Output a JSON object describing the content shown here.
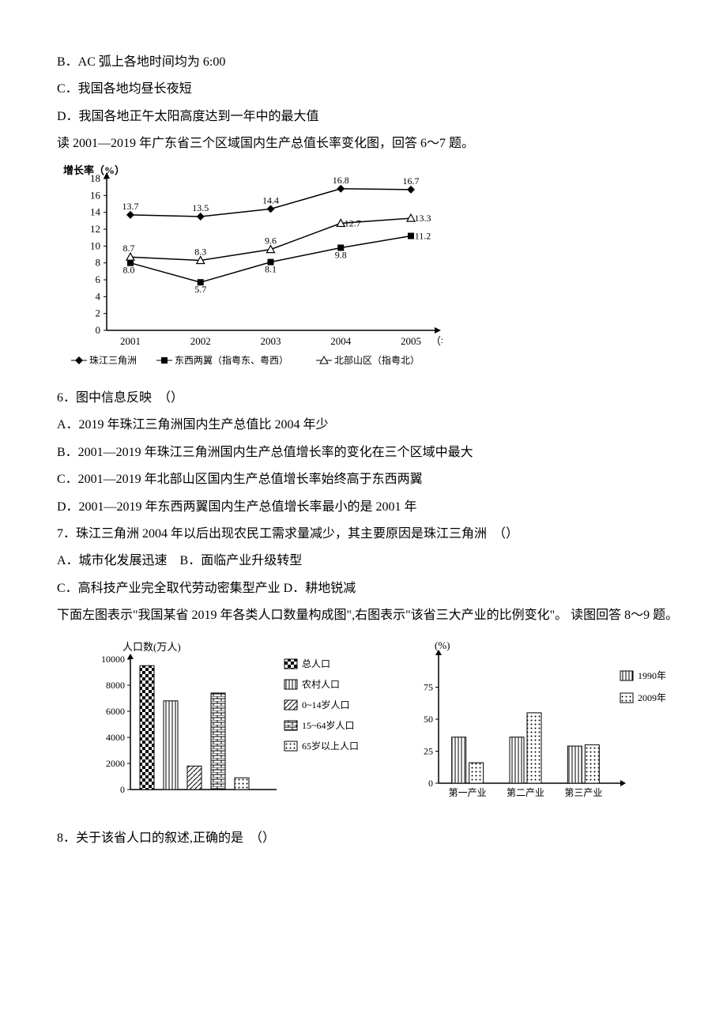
{
  "optB": "B．AC 弧上各地时间均为 6:00",
  "optC": "C．我国各地均昼长夜短",
  "optD": "D．我国各地正午太阳高度达到一年中的最大值",
  "intro67": "读 2001—2019 年广东省三个区域国内生产总值长率变化图，回答 6～7 题。",
  "chart1": {
    "ylabel": "增长率（%）",
    "xlabel_unit": "（年）",
    "years": [
      "2001",
      "2002",
      "2003",
      "2004",
      "2005"
    ],
    "ylim": [
      0,
      18
    ],
    "ytick_step": 2,
    "series": {
      "prd": {
        "label": "珠江三角洲",
        "values": [
          13.7,
          13.5,
          14.4,
          16.8,
          16.7
        ],
        "marker": "diamond"
      },
      "ew": {
        "label": "东西两翼（指粤东、粤西）",
        "values": [
          8.0,
          5.7,
          8.1,
          9.8,
          11.2
        ],
        "marker": "square"
      },
      "north": {
        "label": "北部山区（指粤北）",
        "values": [
          8.7,
          8.3,
          9.6,
          12.7,
          13.3
        ],
        "marker": "triangle"
      }
    },
    "point_labels": [
      "13.7",
      "13.5",
      "14.4",
      "16.8",
      "16.7",
      "8.7",
      "8.0",
      "5.7",
      "8.3",
      "8.1",
      "9.6",
      "12.7",
      "9.8",
      "13.3",
      "11.2"
    ],
    "font_size_axis": 13,
    "font_size_label": 13,
    "line_color": "#000",
    "bg": "#fff"
  },
  "q6": "6．图中信息反映　（）",
  "q6a": "A．2019 年珠江三角洲国内生产总值比 2004 年少",
  "q6b": "B．2001—2019 年珠江三角洲国内生产总值增长率的变化在三个区域中最大",
  "q6c": "C．2001—2019 年北部山区国内生产总值增长率始终高于东西两翼",
  "q6d": "D．2001—2019 年东西两翼国内生产总值增长率最小的是 2001 年",
  "q7": "7．珠江三角洲 2004 年以后出现农民工需求量减少，其主要原因是珠江三角洲　（）",
  "q7a": "A．城市化发展迅速　B．面临产业升级转型",
  "q7c": "C．高科技产业完全取代劳动密集型产业 D．耕地锐减",
  "intro89a": "下面左图表示\"我国某省 2019 年各类人口数量构成图\",右图表示\"该省三大产业的比例变化\"。 读图回答 8～9 题。",
  "chart2": {
    "ylabel": "人口数(万人)",
    "ylim": [
      0,
      10000
    ],
    "ytick_step": 2000,
    "bars": [
      {
        "label": "总人口",
        "value": 9500,
        "pattern": "check"
      },
      {
        "label": "农村人口",
        "value": 6800,
        "pattern": "vert"
      },
      {
        "label": "0~14岁人口",
        "value": 1800,
        "pattern": "diag"
      },
      {
        "label": "15~64岁人口",
        "value": 7400,
        "pattern": "brick"
      },
      {
        "label": "65岁以上人口",
        "value": 900,
        "pattern": "dots"
      }
    ],
    "legend_items": [
      "总人口",
      "农村人口",
      "0~14岁人口",
      "15~64岁人口",
      "65岁以上人口"
    ],
    "font_size": 13
  },
  "chart3": {
    "ylabel": "(%)",
    "ylim": [
      0,
      100
    ],
    "yticks": [
      0,
      25,
      50,
      75
    ],
    "categories": [
      "第一产业",
      "第二产业",
      "第三产业"
    ],
    "series": [
      {
        "label": "1990年",
        "values": [
          36,
          36,
          29
        ],
        "pattern": "vert"
      },
      {
        "label": "2009年",
        "values": [
          16,
          55,
          30
        ],
        "pattern": "dots"
      }
    ],
    "font_size": 13
  },
  "q8": "8．关于该省人口的叙述,正确的是　（）"
}
